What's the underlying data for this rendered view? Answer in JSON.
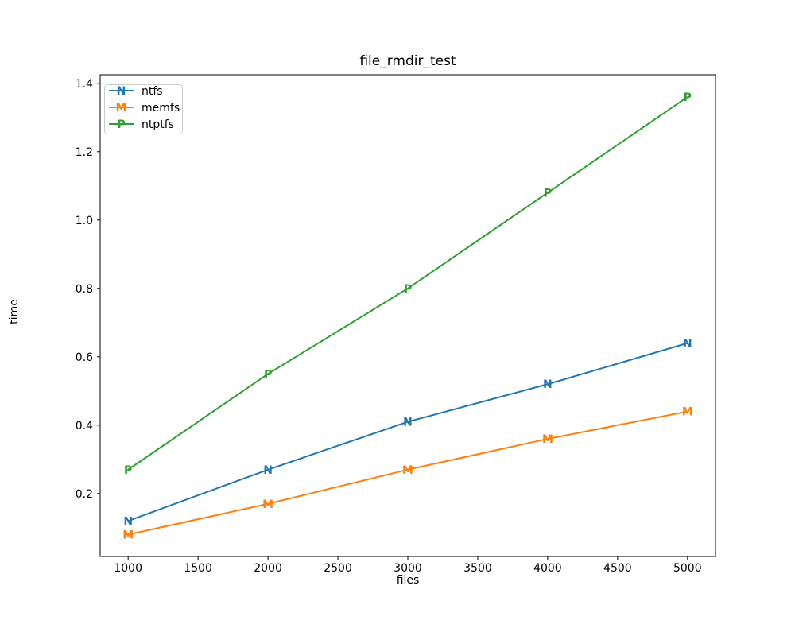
{
  "figure": {
    "background": "#ffffff",
    "frame_color": "#000000",
    "legend_border_color": "#cccccc"
  },
  "chart_data": {
    "type": "line",
    "title": "file_rmdir_test",
    "xlabel": "files",
    "ylabel": "time",
    "x": [
      1000,
      2000,
      3000,
      4000,
      5000
    ],
    "series": [
      {
        "name": "ntfs",
        "marker": "N",
        "color": "#1f77b4",
        "values": [
          0.12,
          0.27,
          0.41,
          0.52,
          0.64
        ]
      },
      {
        "name": "memfs",
        "marker": "M",
        "color": "#ff7f0e",
        "values": [
          0.08,
          0.17,
          0.27,
          0.36,
          0.44
        ]
      },
      {
        "name": "ntptfs",
        "marker": "P",
        "color": "#2ca02c",
        "values": [
          0.27,
          0.55,
          0.8,
          1.08,
          1.36
        ]
      }
    ],
    "xticks": [
      1000,
      1500,
      2000,
      2500,
      3000,
      3500,
      4000,
      4500,
      5000
    ],
    "yticks": [
      0.2,
      0.4,
      0.6,
      0.8,
      1.0,
      1.2,
      1.4
    ],
    "xlim": [
      800,
      5200
    ],
    "ylim": [
      0.016,
      1.425
    ],
    "grid": false,
    "legend_position": "upper left"
  }
}
